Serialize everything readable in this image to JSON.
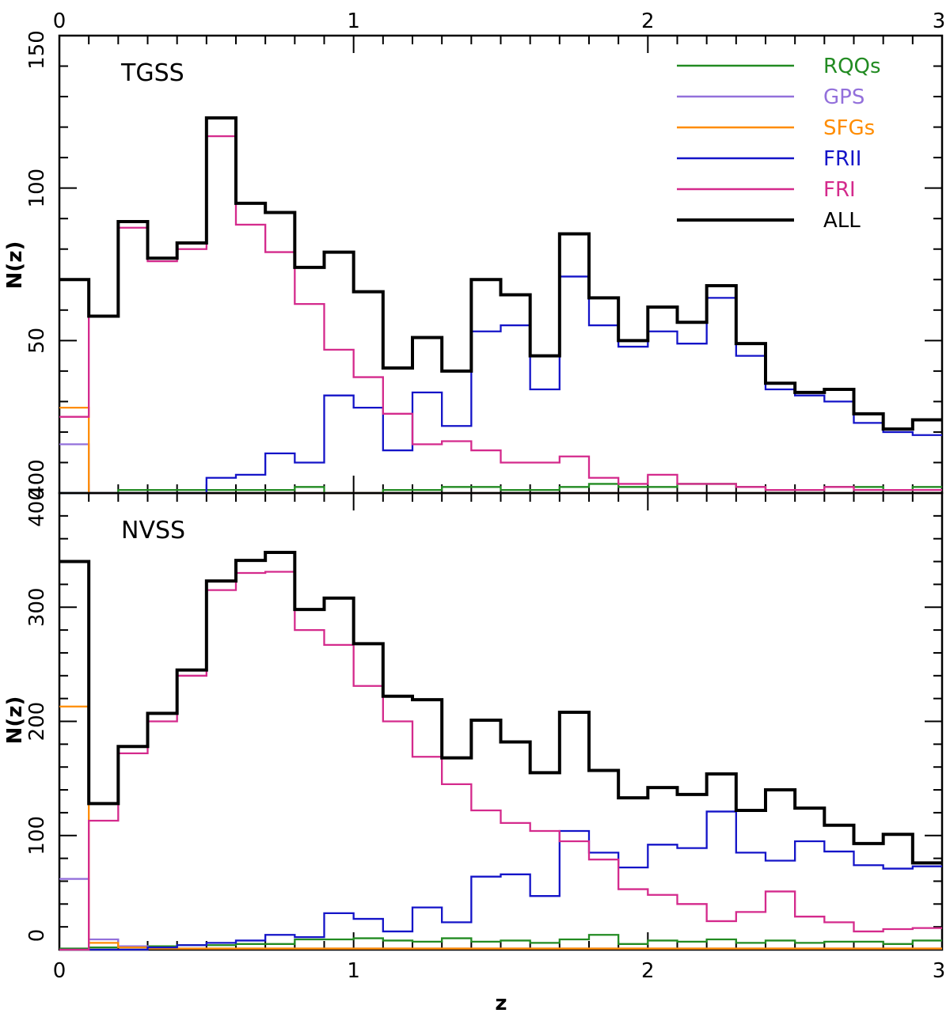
{
  "chart_data": [
    {
      "type": "histogram-step",
      "title": "TGSS",
      "xlabel": "",
      "ylabel": "N(z)",
      "xlim": [
        0,
        3
      ],
      "ylim": [
        0,
        150
      ],
      "bin_edges": [
        0,
        0.1,
        0.2,
        0.3,
        0.4,
        0.5,
        0.6,
        0.7,
        0.8,
        0.9,
        1.0,
        1.1,
        1.2,
        1.3,
        1.4,
        1.5,
        1.6,
        1.7,
        1.8,
        1.9,
        2.0,
        2.1,
        2.2,
        2.3,
        2.4,
        2.5,
        2.6,
        2.7,
        2.8,
        2.9,
        3.0
      ],
      "xticks": [
        "0",
        "1",
        "2",
        "3"
      ],
      "yticks": [
        "50",
        "100",
        "150"
      ],
      "y_zero_label": "400",
      "legend": {
        "position": "top-right",
        "entries": [
          "RQQs",
          "GPS",
          "SFGs",
          "FRII",
          "FRI",
          "ALL"
        ]
      },
      "series": [
        {
          "name": "ALL",
          "color": "#000000",
          "values": [
            70,
            58,
            89,
            77,
            82,
            123,
            95,
            92,
            74,
            79,
            66,
            41,
            51,
            40,
            70,
            65,
            45,
            85,
            64,
            50,
            61,
            56,
            68,
            49,
            36,
            33,
            34,
            26,
            21,
            24
          ]
        },
        {
          "name": "FRI",
          "color": "#d42a8c",
          "values": [
            25,
            58,
            87,
            76,
            80,
            117,
            88,
            79,
            62,
            47,
            38,
            26,
            16,
            17,
            14,
            10,
            10,
            12,
            5,
            3,
            6,
            3,
            3,
            2,
            1,
            1,
            2,
            1,
            1,
            1
          ]
        },
        {
          "name": "FRII",
          "color": "#1414c8",
          "values": [
            0,
            0,
            0,
            0,
            0,
            5,
            6,
            13,
            10,
            32,
            28,
            14,
            33,
            22,
            53,
            55,
            34,
            71,
            55,
            48,
            53,
            49,
            64,
            45,
            34,
            32,
            30,
            23,
            20,
            19
          ]
        },
        {
          "name": "SFGs",
          "color": "#ff8c00",
          "values": [
            28,
            0,
            0,
            0,
            0,
            0,
            0,
            0,
            0,
            0,
            0,
            0,
            0,
            0,
            0,
            0,
            0,
            0,
            0,
            0,
            0,
            0,
            0,
            0,
            0,
            0,
            0,
            0,
            0,
            0
          ]
        },
        {
          "name": "GPS",
          "color": "#9370db",
          "values": [
            16,
            0,
            0,
            0,
            0,
            0,
            0,
            0,
            0,
            0,
            0,
            0,
            0,
            0,
            0,
            0,
            0,
            0,
            0,
            0,
            0,
            0,
            0,
            0,
            0,
            0,
            0,
            0,
            0,
            0
          ]
        },
        {
          "name": "RQQs",
          "color": "#228b22",
          "values": [
            0,
            0,
            1,
            1,
            1,
            1,
            1,
            1,
            2,
            0,
            0,
            1,
            1,
            2,
            2,
            1,
            1,
            2,
            3,
            2,
            2,
            3,
            3,
            2,
            1,
            1,
            2,
            2,
            1,
            2
          ]
        }
      ]
    },
    {
      "type": "histogram-step",
      "title": "NVSS",
      "xlabel": "z",
      "ylabel": "N(z)",
      "xlim": [
        0,
        3
      ],
      "ylim": [
        0,
        400
      ],
      "bin_edges": [
        0,
        0.1,
        0.2,
        0.3,
        0.4,
        0.5,
        0.6,
        0.7,
        0.8,
        0.9,
        1.0,
        1.1,
        1.2,
        1.3,
        1.4,
        1.5,
        1.6,
        1.7,
        1.8,
        1.9,
        2.0,
        2.1,
        2.2,
        2.3,
        2.4,
        2.5,
        2.6,
        2.7,
        2.8,
        2.9,
        3.0
      ],
      "xticks": [
        "0",
        "1",
        "2",
        "3"
      ],
      "yticks": [
        "0",
        "100",
        "200",
        "300",
        "400"
      ],
      "series": [
        {
          "name": "ALL",
          "color": "#000000",
          "values": [
            340,
            128,
            178,
            207,
            245,
            323,
            341,
            348,
            298,
            308,
            268,
            222,
            219,
            168,
            201,
            182,
            155,
            208,
            157,
            133,
            142,
            136,
            154,
            122,
            140,
            124,
            109,
            93,
            101,
            76
          ]
        },
        {
          "name": "FRI",
          "color": "#d42a8c",
          "values": [
            0,
            113,
            172,
            200,
            240,
            315,
            330,
            331,
            280,
            267,
            231,
            200,
            169,
            145,
            122,
            111,
            104,
            95,
            79,
            53,
            48,
            40,
            25,
            33,
            51,
            29,
            24,
            16,
            18,
            19
          ]
        },
        {
          "name": "FRII",
          "color": "#1414c8",
          "values": [
            0,
            0,
            0,
            2,
            4,
            6,
            8,
            13,
            11,
            32,
            27,
            16,
            37,
            24,
            64,
            66,
            47,
            104,
            85,
            72,
            92,
            89,
            121,
            85,
            78,
            95,
            86,
            74,
            71,
            73
          ]
        },
        {
          "name": "SFGs",
          "color": "#ff8c00",
          "values": [
            213,
            6,
            2,
            1,
            1,
            1,
            1,
            1,
            1,
            1,
            1,
            1,
            1,
            1,
            1,
            1,
            1,
            1,
            1,
            1,
            1,
            1,
            1,
            1,
            1,
            1,
            1,
            1,
            1,
            1
          ]
        },
        {
          "name": "GPS",
          "color": "#9370db",
          "values": [
            62,
            9,
            3,
            1,
            1,
            1,
            1,
            1,
            1,
            1,
            1,
            1,
            1,
            1,
            1,
            1,
            1,
            1,
            1,
            1,
            1,
            1,
            1,
            1,
            1,
            1,
            1,
            1,
            1,
            1
          ]
        },
        {
          "name": "RQQs",
          "color": "#228b22",
          "values": [
            1,
            2,
            3,
            3,
            4,
            4,
            5,
            5,
            9,
            9,
            10,
            8,
            7,
            10,
            7,
            8,
            6,
            9,
            13,
            5,
            8,
            7,
            9,
            6,
            8,
            6,
            7,
            7,
            5,
            8
          ]
        }
      ]
    }
  ]
}
